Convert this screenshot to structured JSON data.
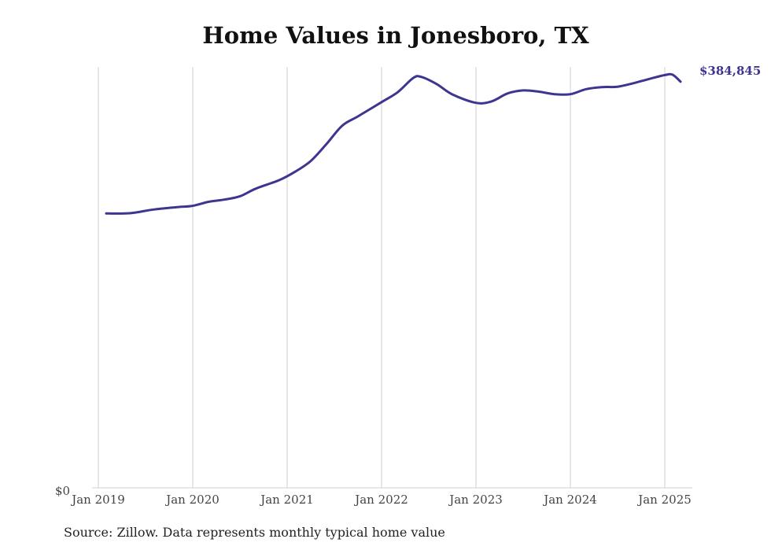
{
  "chart_data": {
    "type": "line",
    "title": "Home Values in Jonesboro, TX",
    "source": "Source: Zillow. Data represents monthly typical home value",
    "y_tick_label": "$0",
    "end_label": "$384,845",
    "xlabel": "",
    "ylabel": "",
    "ylim": [
      0,
      400000
    ],
    "grid": "vertical",
    "x_ticks": [
      {
        "label": "Jan 2019",
        "t": 2019.0
      },
      {
        "label": "Jan 2020",
        "t": 2020.0
      },
      {
        "label": "Jan 2021",
        "t": 2021.0
      },
      {
        "label": "Jan 2022",
        "t": 2022.0
      },
      {
        "label": "Jan 2023",
        "t": 2023.0
      },
      {
        "label": "Jan 2024",
        "t": 2024.0
      },
      {
        "label": "Jan 2025",
        "t": 2025.0
      }
    ],
    "series": [
      {
        "color": "#3d3590",
        "points": [
          {
            "date": "2019-02",
            "value": 260000
          },
          {
            "date": "2019-05",
            "value": 260200
          },
          {
            "date": "2019-08",
            "value": 263700
          },
          {
            "date": "2019-11",
            "value": 266000
          },
          {
            "date": "2020-01",
            "value": 267200
          },
          {
            "date": "2020-03",
            "value": 271000
          },
          {
            "date": "2020-05",
            "value": 273100
          },
          {
            "date": "2020-07",
            "value": 276300
          },
          {
            "date": "2020-09",
            "value": 283500
          },
          {
            "date": "2020-12",
            "value": 291600
          },
          {
            "date": "2021-02",
            "value": 299500
          },
          {
            "date": "2021-04",
            "value": 309700
          },
          {
            "date": "2021-06",
            "value": 325800
          },
          {
            "date": "2021-08",
            "value": 343200
          },
          {
            "date": "2021-10",
            "value": 352000
          },
          {
            "date": "2022-01",
            "value": 365500
          },
          {
            "date": "2022-03",
            "value": 374600
          },
          {
            "date": "2022-05",
            "value": 388200
          },
          {
            "date": "2022-06",
            "value": 389500
          },
          {
            "date": "2022-08",
            "value": 382600
          },
          {
            "date": "2022-10",
            "value": 372800
          },
          {
            "date": "2023-01",
            "value": 364800
          },
          {
            "date": "2023-03",
            "value": 366200
          },
          {
            "date": "2023-05",
            "value": 373700
          },
          {
            "date": "2023-07",
            "value": 376600
          },
          {
            "date": "2023-09",
            "value": 375400
          },
          {
            "date": "2023-11",
            "value": 373000
          },
          {
            "date": "2024-01",
            "value": 373000
          },
          {
            "date": "2024-03",
            "value": 377800
          },
          {
            "date": "2024-05",
            "value": 379700
          },
          {
            "date": "2024-07",
            "value": 380100
          },
          {
            "date": "2024-09",
            "value": 383400
          },
          {
            "date": "2024-11",
            "value": 387400
          },
          {
            "date": "2025-01",
            "value": 391100
          },
          {
            "date": "2025-02",
            "value": 391400
          },
          {
            "date": "2025-03",
            "value": 384845
          }
        ]
      }
    ]
  }
}
